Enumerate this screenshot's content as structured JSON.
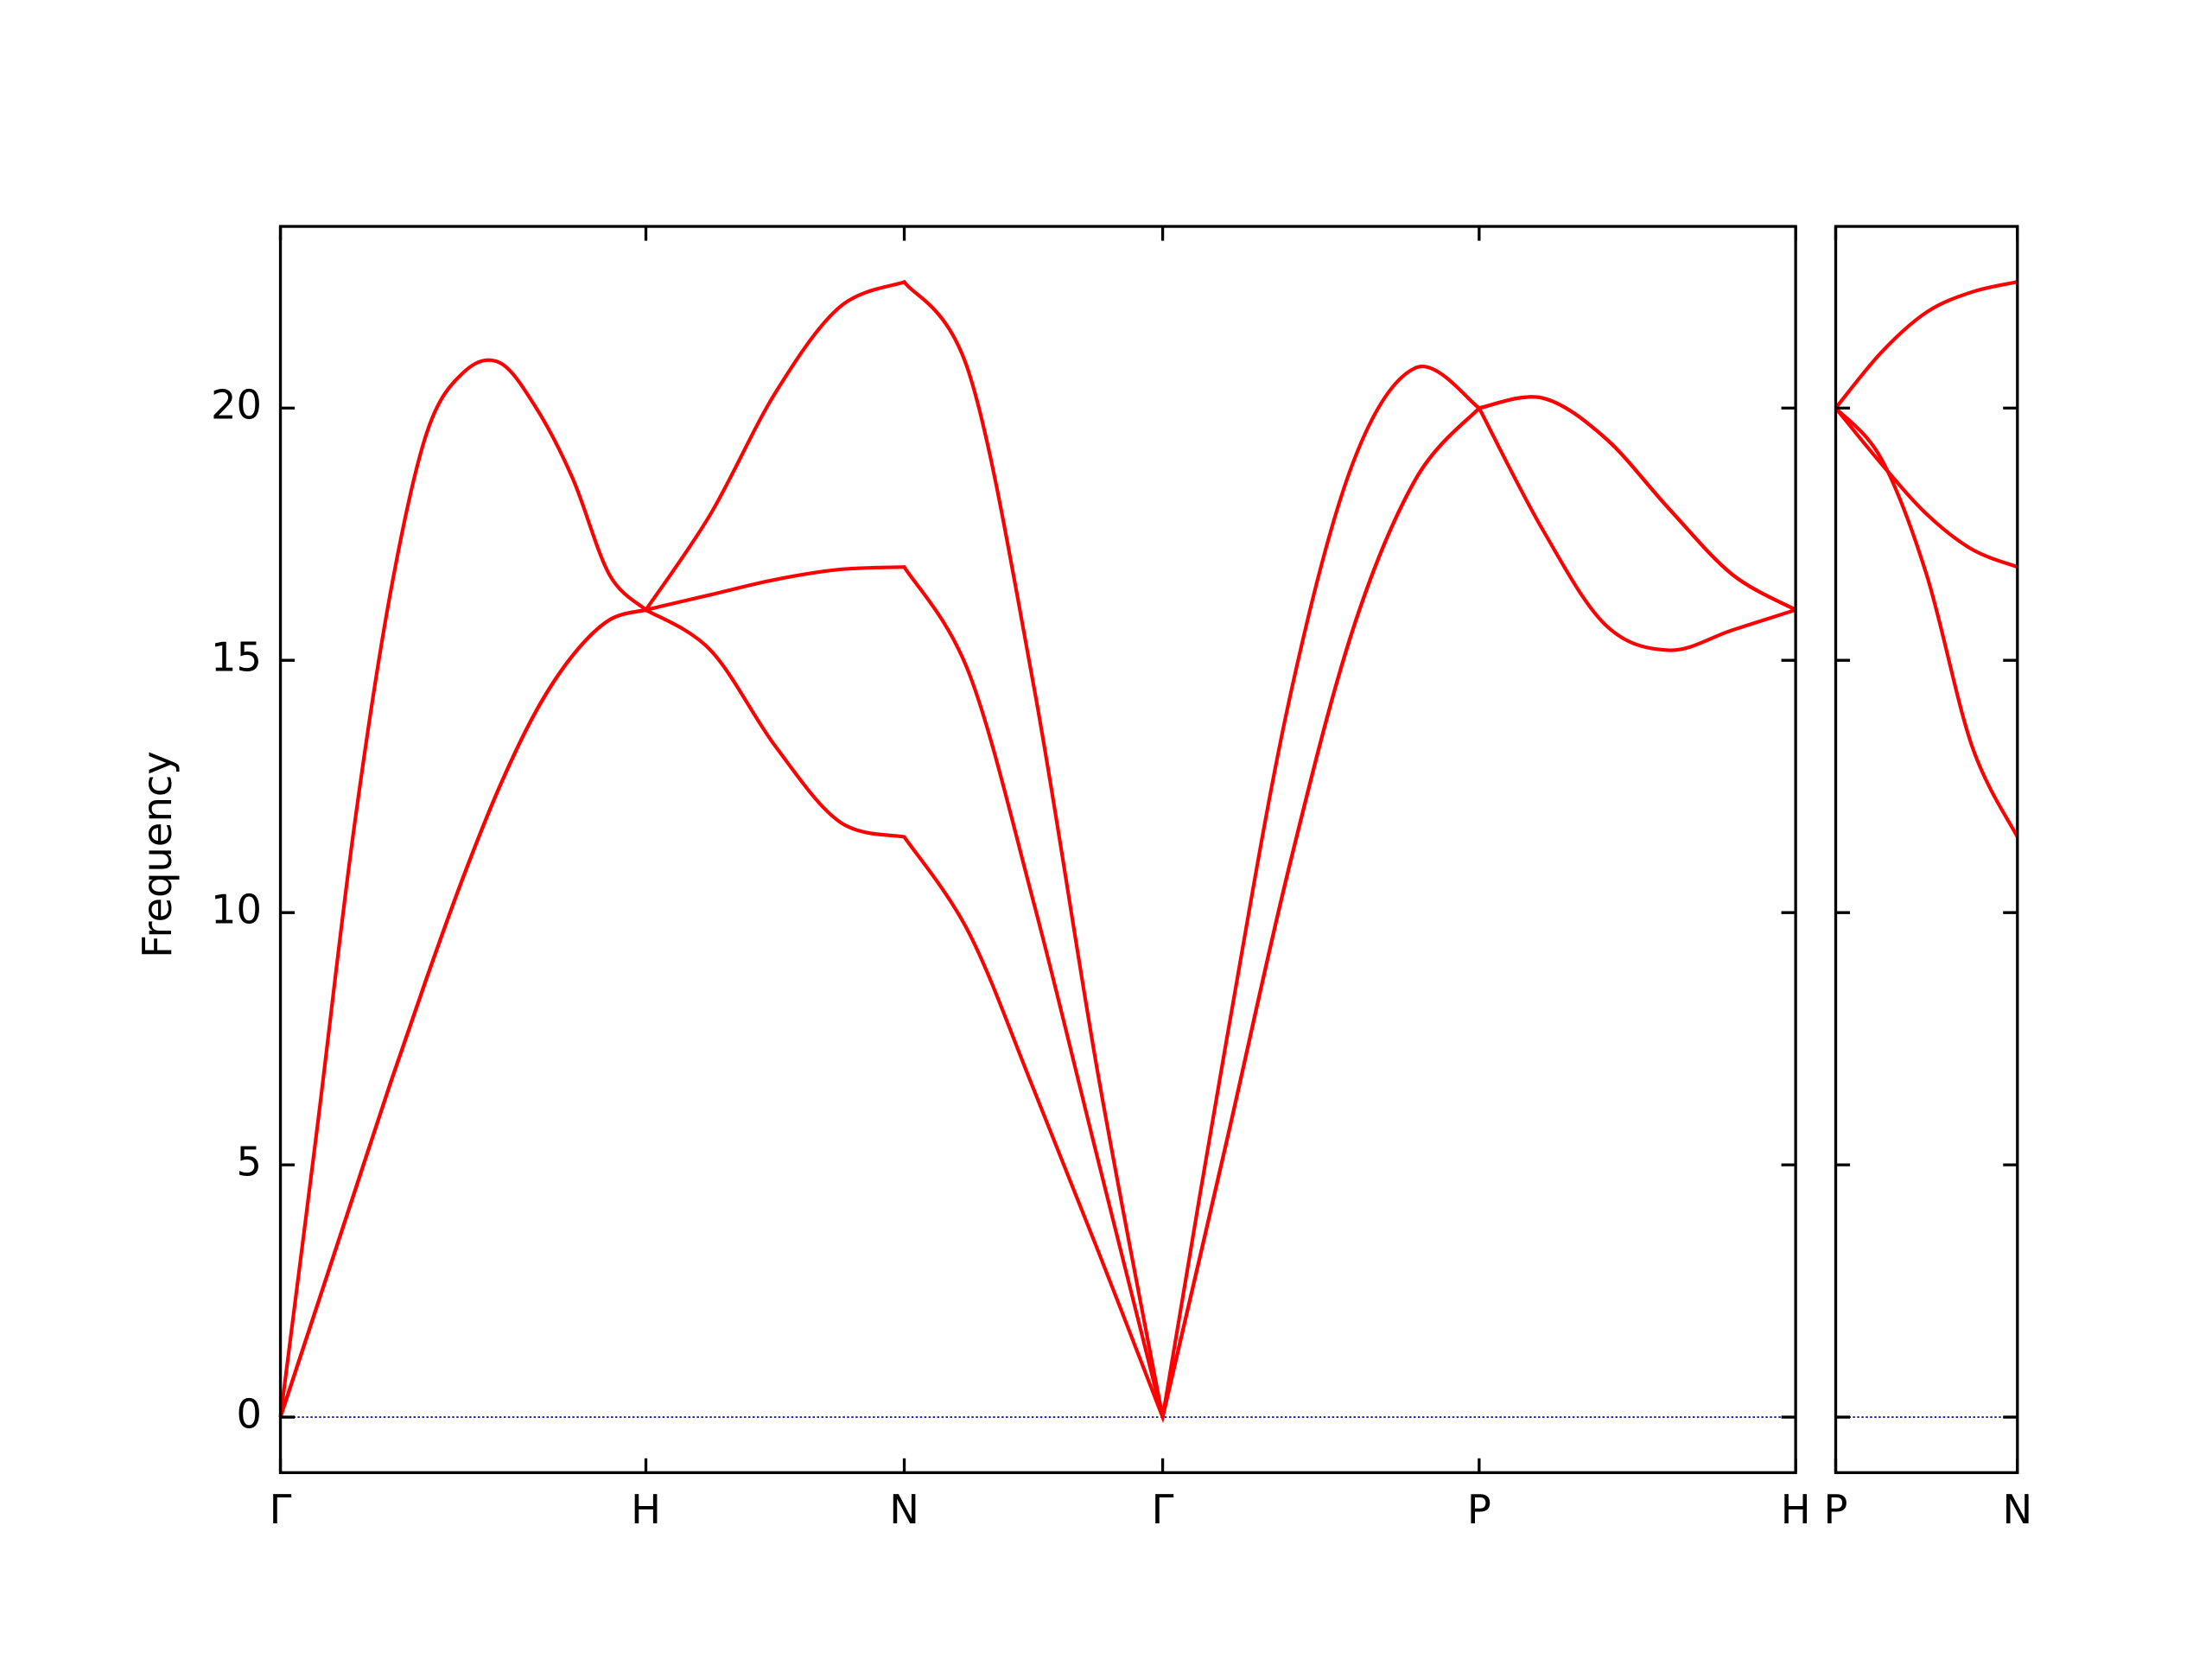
{
  "chart_data": [
    {
      "type": "line",
      "ylabel": "Frequency",
      "x": [
        0,
        0.1,
        0.2,
        0.3,
        0.4,
        0.5,
        0.6,
        0.7,
        0.8,
        0.9,
        1.0,
        1.177,
        1.354,
        1.53,
        1.707,
        1.884,
        2.061,
        2.237,
        2.414,
        2.587,
        2.76,
        2.934,
        3.107,
        3.28,
        3.453,
        3.626,
        3.8,
        3.973,
        4.146
      ],
      "series": [
        {
          "color": "#ff0000",
          "values": [
            0,
            5.7,
            11.6,
            16.3,
            19.5,
            20.7,
            20.9,
            20.0,
            18.6,
            16.7,
            16.0,
            17.9,
            20.3,
            22.0,
            22.5,
            20.7,
            14.5,
            6.8,
            0,
            7.4,
            14.2,
            18.9,
            20.8,
            20.0,
            17.6,
            15.7,
            15.2,
            15.6,
            16.0
          ]
        },
        {
          "color": "#ff0000",
          "values": [
            0,
            2.2,
            4.4,
            6.6,
            8.7,
            10.7,
            12.5,
            14.0,
            15.1,
            15.8,
            16.0,
            16.3,
            16.6,
            16.8,
            16.85,
            14.75,
            10.2,
            5.1,
            0,
            5.4,
            10.9,
            15.6,
            18.6,
            20.0,
            20.2,
            19.4,
            18.0,
            16.7,
            16.0
          ]
        },
        {
          "color": "#ff0000",
          "values": [
            0,
            2.2,
            4.4,
            6.6,
            8.7,
            10.7,
            12.5,
            14.0,
            15.1,
            15.8,
            16.0,
            15.2,
            13.3,
            11.8,
            11.5,
            9.6,
            6.5,
            3.3,
            0,
            5.4,
            10.9,
            15.6,
            18.6,
            20.0,
            20.2,
            19.4,
            18.0,
            16.7,
            16.0
          ]
        }
      ],
      "xlim": [
        0,
        4.146
      ],
      "xticks": [
        {
          "value": 0,
          "label": "Γ"
        },
        {
          "value": 1.0,
          "label": "H"
        },
        {
          "value": 1.707,
          "label": "N"
        },
        {
          "value": 2.414,
          "label": "Γ"
        },
        {
          "value": 3.28,
          "label": "P"
        },
        {
          "value": 4.146,
          "label": "H"
        }
      ],
      "ylim": [
        -1.1,
        23.6
      ],
      "yticks": [
        0,
        5,
        10,
        15,
        20
      ],
      "show_ytick_labels": true,
      "zero_line_color": "#00008b"
    },
    {
      "type": "line",
      "x": [
        0,
        0.125,
        0.25,
        0.375,
        0.5
      ],
      "series": [
        {
          "color": "#ff0000",
          "values": [
            20,
            21.1,
            21.9,
            22.3,
            22.5
          ]
        },
        {
          "color": "#ff0000",
          "values": [
            20,
            18.9,
            17.9,
            17.2,
            16.85
          ]
        },
        {
          "color": "#ff0000",
          "values": [
            20,
            19.0,
            16.7,
            13.3,
            11.5
          ]
        }
      ],
      "xlim": [
        0,
        0.5
      ],
      "xticks": [
        {
          "value": 0,
          "label": "P"
        },
        {
          "value": 0.5,
          "label": "N"
        }
      ],
      "ylim": [
        -1.1,
        23.6
      ],
      "yticks": [
        0,
        5,
        10,
        15,
        20
      ],
      "show_ytick_labels": false,
      "zero_line_color": "#00008b"
    }
  ]
}
